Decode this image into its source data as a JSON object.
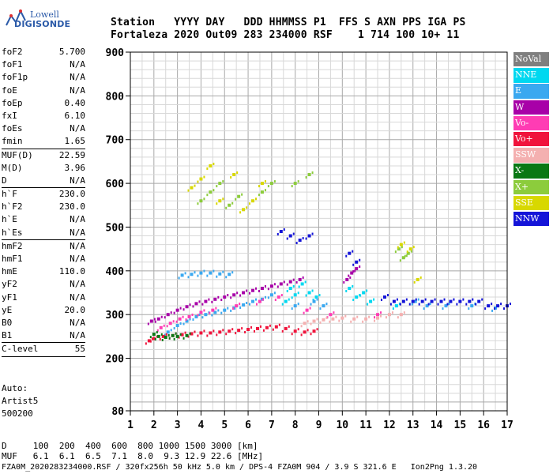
{
  "logo": {
    "brand_top": "Lowell",
    "brand_bottom": "DIGISONDE"
  },
  "header": {
    "line1": "Station   YYYY DAY   DDD HHMMSS P1  FFS S AXN PPS IGA PS",
    "line2": "Fortaleza 2020 Out09 283 234000 RSF    1 714 100 10+ 11"
  },
  "params": [
    {
      "name": "foF2",
      "value": "5.700"
    },
    {
      "name": "foF1",
      "value": "N/A"
    },
    {
      "name": "foF1p",
      "value": "N/A"
    },
    {
      "name": "foE",
      "value": "N/A"
    },
    {
      "name": "foEp",
      "value": "0.40"
    },
    {
      "name": "fxI",
      "value": "6.10"
    },
    {
      "name": "foEs",
      "value": "N/A"
    },
    {
      "name": "fmin",
      "value": "1.65",
      "sep": true
    },
    {
      "name": "MUF(D)",
      "value": "22.59"
    },
    {
      "name": "M(D)",
      "value": "3.96"
    },
    {
      "name": "D",
      "value": "N/A",
      "sep": true
    },
    {
      "name": "h`F",
      "value": "230.0"
    },
    {
      "name": "h`F2",
      "value": "230.0"
    },
    {
      "name": "h`E",
      "value": "N/A"
    },
    {
      "name": "h`Es",
      "value": "N/A",
      "sep": true
    },
    {
      "name": "hmF2",
      "value": "N/A"
    },
    {
      "name": "hmF1",
      "value": "N/A"
    },
    {
      "name": "hmE",
      "value": "110.0"
    },
    {
      "name": "yF2",
      "value": "N/A"
    },
    {
      "name": "yF1",
      "value": "N/A"
    },
    {
      "name": "yE",
      "value": "20.0"
    },
    {
      "name": "B0",
      "value": "N/A"
    },
    {
      "name": "B1",
      "value": "N/A",
      "sep": true
    },
    {
      "name": "C-level",
      "value": "55",
      "sep": true
    }
  ],
  "notes": [
    "Auto:",
    "Artist5",
    "500200"
  ],
  "legend": [
    {
      "label": "NoVal",
      "color": "#7f7f7f"
    },
    {
      "label": "NNE",
      "color": "#00d8f0"
    },
    {
      "label": "E",
      "color": "#3aa8f0"
    },
    {
      "label": "W",
      "color": "#a800a8"
    },
    {
      "label": "Vo-",
      "color": "#ff3cb4"
    },
    {
      "label": "Vo+",
      "color": "#f0143c"
    },
    {
      "label": "SSW",
      "color": "#f4b0b0"
    },
    {
      "label": "X-",
      "color": "#0a7814"
    },
    {
      "label": "X+",
      "color": "#8ccc3c"
    },
    {
      "label": "SSE",
      "color": "#d8d800"
    },
    {
      "label": "NNW",
      "color": "#1414d8"
    }
  ],
  "muf_table": {
    "line1": "D     100  200  400  600  800 1000 1500 3000 [km]",
    "line2": "MUF   6.1  6.1  6.5  7.1  8.0  9.3 12.9 22.6 [MHz]"
  },
  "footer": "FZA0M_2020283234000.RSF / 320fx256h 50 kHz 5.0 km / DPS-4 FZA0M 904 / 3.9 S 321.6 E   Ion2Png 1.3.20",
  "chart_data": {
    "type": "scatter",
    "title": "",
    "xlabel": "",
    "ylabel": "",
    "xlim": [
      1,
      17
    ],
    "ylim": [
      80,
      900
    ],
    "x_ticks": [
      1,
      2,
      3,
      4,
      5,
      6,
      7,
      8,
      9,
      10,
      11,
      12,
      13,
      14,
      15,
      16,
      17
    ],
    "y_ticks": [
      80,
      200,
      300,
      400,
      500,
      600,
      700,
      800,
      900
    ],
    "grid": true,
    "series": [
      {
        "name": "NNE",
        "color": "#00d8f0",
        "points": [
          [
            7.6,
            330
          ],
          [
            7.8,
            360
          ],
          [
            8.0,
            345
          ],
          [
            8.3,
            370
          ],
          [
            8.6,
            350
          ],
          [
            10.3,
            360
          ],
          [
            10.6,
            340
          ],
          [
            10.9,
            350
          ],
          [
            11.2,
            330
          ],
          [
            12.3,
            320
          ],
          [
            8.9,
            340
          ]
        ]
      },
      {
        "name": "E",
        "color": "#3aa8f0",
        "points": [
          [
            2.6,
            260
          ],
          [
            3.0,
            275
          ],
          [
            3.4,
            285
          ],
          [
            3.8,
            295
          ],
          [
            4.2,
            300
          ],
          [
            4.6,
            305
          ],
          [
            5.0,
            310
          ],
          [
            5.4,
            315
          ],
          [
            5.8,
            322
          ],
          [
            6.2,
            330
          ],
          [
            6.6,
            335
          ],
          [
            7.0,
            345
          ],
          [
            3.2,
            390
          ],
          [
            3.6,
            392
          ],
          [
            4.0,
            395
          ],
          [
            4.4,
            395
          ],
          [
            4.8,
            393
          ],
          [
            5.2,
            392
          ],
          [
            8.0,
            320
          ],
          [
            8.8,
            330
          ],
          [
            9.2,
            320
          ],
          [
            13.1,
            330
          ],
          [
            13.6,
            320
          ],
          [
            14.4,
            320
          ],
          [
            15.5,
            320
          ],
          [
            16.5,
            315
          ]
        ]
      },
      {
        "name": "W",
        "color": "#a800a8",
        "points": [
          [
            1.9,
            285
          ],
          [
            2.2,
            290
          ],
          [
            2.6,
            300
          ],
          [
            3.0,
            310
          ],
          [
            3.4,
            318
          ],
          [
            3.8,
            325
          ],
          [
            4.2,
            330
          ],
          [
            4.6,
            335
          ],
          [
            5.0,
            340
          ],
          [
            5.4,
            345
          ],
          [
            5.8,
            350
          ],
          [
            6.2,
            355
          ],
          [
            6.6,
            360
          ],
          [
            7.0,
            365
          ],
          [
            7.4,
            370
          ],
          [
            7.8,
            375
          ],
          [
            8.2,
            380
          ],
          [
            10.4,
            395
          ],
          [
            10.6,
            405
          ],
          [
            10.2,
            380
          ]
        ]
      },
      {
        "name": "Vo-",
        "color": "#ff3cb4",
        "points": [
          [
            2.3,
            270
          ],
          [
            2.7,
            280
          ],
          [
            3.1,
            290
          ],
          [
            3.5,
            295
          ],
          [
            4.0,
            305
          ],
          [
            4.5,
            310
          ],
          [
            5.5,
            320
          ],
          [
            6.5,
            330
          ],
          [
            7.3,
            340
          ],
          [
            8.5,
            310
          ],
          [
            9.5,
            300
          ],
          [
            11.5,
            300
          ]
        ]
      },
      {
        "name": "Vo+",
        "color": "#f0143c",
        "points": [
          [
            1.8,
            240
          ],
          [
            2.0,
            245
          ],
          [
            2.4,
            250
          ],
          [
            2.8,
            252
          ],
          [
            3.2,
            254
          ],
          [
            3.6,
            256
          ],
          [
            4.0,
            258
          ],
          [
            4.4,
            258
          ],
          [
            4.8,
            260
          ],
          [
            5.2,
            262
          ],
          [
            5.6,
            264
          ],
          [
            6.0,
            266
          ],
          [
            6.4,
            268
          ],
          [
            6.8,
            270
          ],
          [
            7.2,
            272
          ],
          [
            7.6,
            268
          ],
          [
            8.0,
            262
          ],
          [
            8.4,
            260
          ],
          [
            8.8,
            262
          ]
        ]
      },
      {
        "name": "SSW",
        "color": "#f4b0b0",
        "points": [
          [
            8.4,
            280
          ],
          [
            8.8,
            285
          ],
          [
            9.2,
            288
          ],
          [
            9.6,
            290
          ],
          [
            10.0,
            292
          ],
          [
            10.5,
            290
          ],
          [
            11.0,
            290
          ],
          [
            11.5,
            292
          ],
          [
            12.0,
            300
          ],
          [
            12.5,
            300
          ]
        ]
      },
      {
        "name": "X-",
        "color": "#0a7814",
        "points": [
          [
            2.0,
            255
          ],
          [
            2.2,
            250
          ],
          [
            2.5,
            248
          ],
          [
            2.8,
            252
          ],
          [
            3.0,
            250
          ],
          [
            3.4,
            252
          ]
        ]
      },
      {
        "name": "X+",
        "color": "#8ccc3c",
        "points": [
          [
            4.0,
            560
          ],
          [
            4.4,
            580
          ],
          [
            4.8,
            600
          ],
          [
            5.2,
            550
          ],
          [
            5.6,
            570
          ],
          [
            6.6,
            580
          ],
          [
            7.0,
            600
          ],
          [
            8.0,
            600
          ],
          [
            8.6,
            620
          ],
          [
            12.4,
            450
          ],
          [
            12.6,
            430
          ],
          [
            12.8,
            440
          ]
        ]
      },
      {
        "name": "SSE",
        "color": "#d8d800",
        "points": [
          [
            3.6,
            590
          ],
          [
            4.0,
            610
          ],
          [
            4.4,
            640
          ],
          [
            4.8,
            560
          ],
          [
            5.4,
            620
          ],
          [
            5.8,
            540
          ],
          [
            6.2,
            560
          ],
          [
            6.6,
            600
          ],
          [
            12.5,
            460
          ],
          [
            12.9,
            450
          ],
          [
            13.2,
            380
          ]
        ]
      },
      {
        "name": "NNW",
        "color": "#1414d8",
        "points": [
          [
            7.4,
            490
          ],
          [
            7.8,
            480
          ],
          [
            8.2,
            470
          ],
          [
            8.6,
            480
          ],
          [
            10.3,
            440
          ],
          [
            10.6,
            420
          ],
          [
            11.8,
            340
          ],
          [
            12.2,
            330
          ],
          [
            12.6,
            330
          ],
          [
            13.0,
            330
          ],
          [
            13.4,
            330
          ],
          [
            13.8,
            330
          ],
          [
            14.2,
            330
          ],
          [
            14.6,
            330
          ],
          [
            15.0,
            330
          ],
          [
            15.4,
            330
          ],
          [
            15.8,
            330
          ],
          [
            16.2,
            320
          ],
          [
            16.6,
            320
          ],
          [
            17.0,
            320
          ]
        ]
      }
    ]
  }
}
